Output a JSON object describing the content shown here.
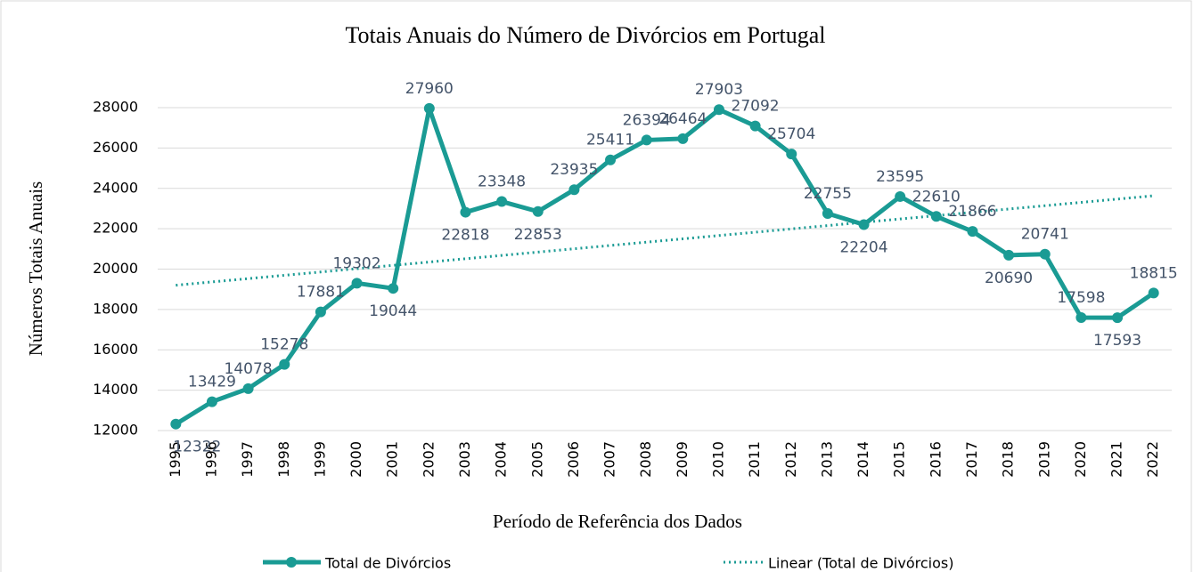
{
  "chart_data": {
    "type": "line",
    "title": "Totais Anuais do Número de Divórcios em Portugal",
    "x_label": "Período de Referência dos Dados",
    "y_label": "Números Totais Anuais",
    "categories": [
      "1995",
      "1996",
      "1997",
      "1998",
      "1999",
      "2000",
      "2001",
      "2002",
      "2003",
      "2004",
      "2005",
      "2006",
      "2007",
      "2008",
      "2009",
      "2010",
      "2011",
      "2012",
      "2013",
      "2014",
      "2015",
      "2016",
      "2017",
      "2018",
      "2019",
      "2020",
      "2021",
      "2022"
    ],
    "series": [
      {
        "name": "Total de Divórcios",
        "color": "#1a9b94",
        "values": [
          12322,
          13429,
          14078,
          15278,
          17881,
          19302,
          19044,
          27960,
          22818,
          23348,
          22853,
          23935,
          25411,
          26394,
          26464,
          27903,
          27092,
          25704,
          22755,
          22204,
          23595,
          22610,
          21866,
          20690,
          20741,
          17598,
          17593,
          18815
        ]
      }
    ],
    "trendline": {
      "name": "Linear (Total de Divórcios)",
      "type": "linear",
      "color": "#1a9b94"
    },
    "ylim": [
      12000,
      28000
    ],
    "yticks": [
      12000,
      14000,
      16000,
      18000,
      20000,
      22000,
      24000,
      26000,
      28000
    ],
    "grid": true,
    "legend": "bottom"
  }
}
